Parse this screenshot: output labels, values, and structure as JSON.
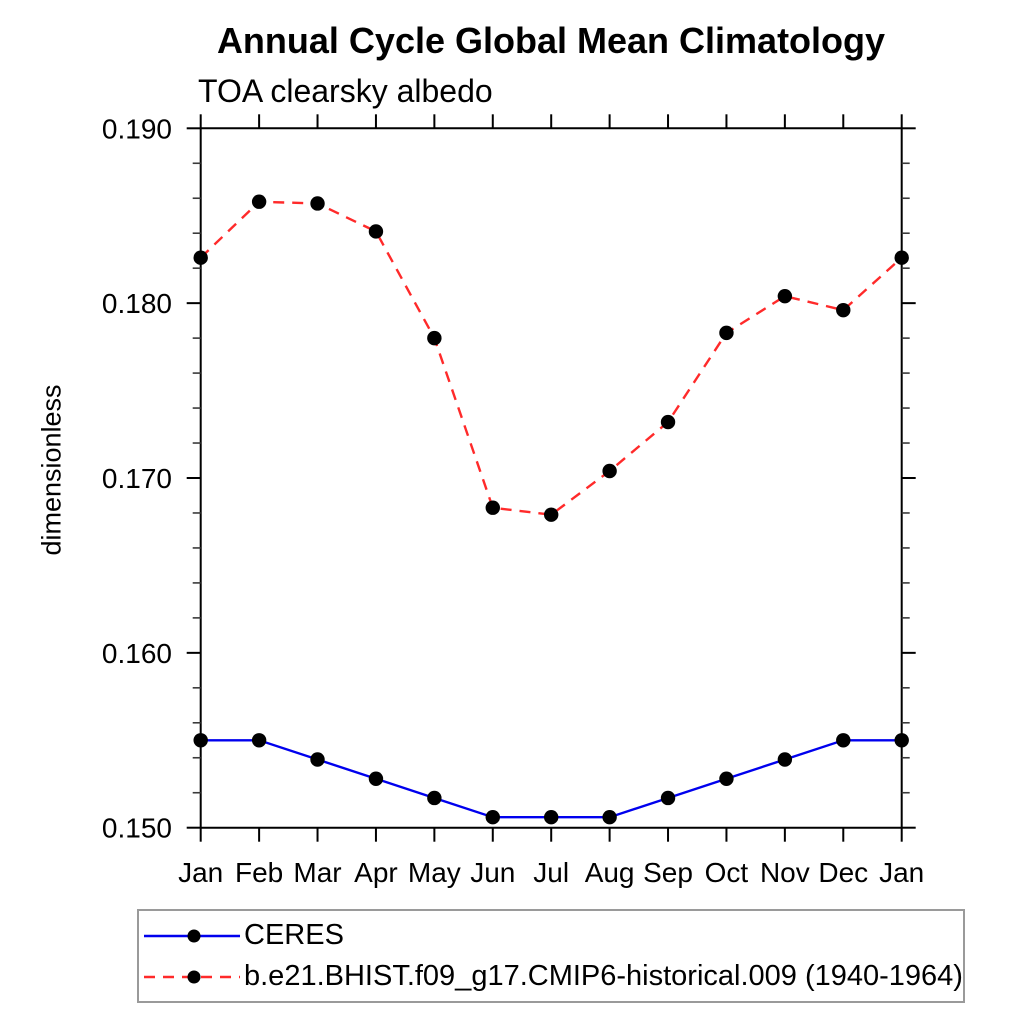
{
  "header": {
    "title": "Annual Cycle Global Mean Climatology",
    "subtitle": "TOA clearsky albedo"
  },
  "colors": {
    "axis": "#000000",
    "minor_tick": "#3a3a3a",
    "marker": "#000000",
    "legend_border": "#9a9a9a",
    "ceres_line": "#0000ee",
    "model_line": "#ff2a2a"
  },
  "chart_data": {
    "type": "line",
    "title": "Annual Cycle Global Mean Climatology",
    "subtitle": "TOA clearsky albedo",
    "xlabel": "",
    "ylabel": "dimensionless",
    "categories": [
      "Jan",
      "Feb",
      "Mar",
      "Apr",
      "May",
      "Jun",
      "Jul",
      "Aug",
      "Sep",
      "Oct",
      "Nov",
      "Dec",
      "Jan"
    ],
    "ylim": [
      0.15,
      0.19
    ],
    "y_major_step": 0.01,
    "y_minor_step": 0.002,
    "y_tick_decimals": 3,
    "y_tick_labels": [
      "0.150",
      "0.160",
      "0.170",
      "0.180",
      "0.190"
    ],
    "grid": false,
    "legend_position": "bottom",
    "series": [
      {
        "name": "CERES",
        "color": "#0000ee",
        "line_style": "solid",
        "marker": "circle",
        "marker_color": "#000000",
        "values": [
          0.155,
          0.155,
          0.1539,
          0.1528,
          0.1517,
          0.1506,
          0.1506,
          0.1506,
          0.1517,
          0.1528,
          0.1539,
          0.155,
          0.155
        ]
      },
      {
        "name": "b.e21.BHIST.f09_g17.CMIP6-historical.009 (1940-1964)",
        "color": "#ff2a2a",
        "line_style": "dashed",
        "marker": "circle",
        "marker_color": "#000000",
        "values": [
          0.1826,
          0.1858,
          0.1857,
          0.1841,
          0.178,
          0.1683,
          0.1679,
          0.1704,
          0.1732,
          0.1783,
          0.1804,
          0.1796,
          0.1826
        ]
      }
    ]
  }
}
